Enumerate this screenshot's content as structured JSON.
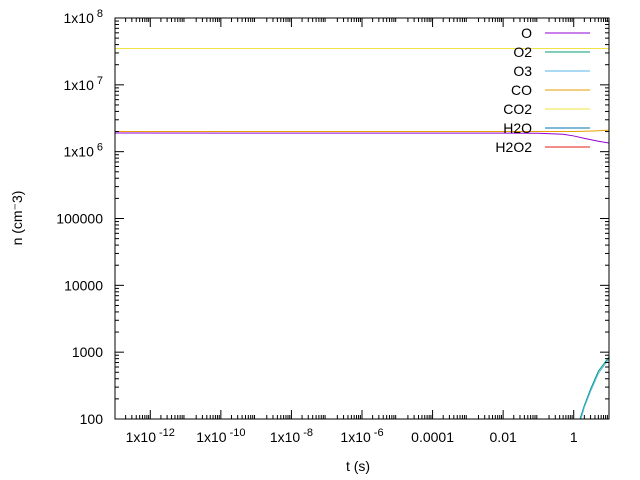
{
  "chart_data": {
    "type": "line",
    "xlabel": "t (s)",
    "ylabel": "n (cm⁻3)",
    "x_scale": "log",
    "y_scale": "log",
    "xlim": [
      1e-13,
      10
    ],
    "ylim": [
      100,
      100000000
    ],
    "grid": false,
    "legend_position": "top-right",
    "x_ticks": [
      {
        "value": 1e-12,
        "mant": "1x10",
        "exp": "-12"
      },
      {
        "value": 1e-10,
        "mant": "1x10",
        "exp": "-10"
      },
      {
        "value": 1e-08,
        "mant": "1x10",
        "exp": "-8"
      },
      {
        "value": 1e-06,
        "mant": "1x10",
        "exp": "-6"
      },
      {
        "value": 0.0001,
        "mant": "0.0001",
        "exp": ""
      },
      {
        "value": 0.01,
        "mant": "0.01",
        "exp": ""
      },
      {
        "value": 1,
        "mant": "1",
        "exp": ""
      }
    ],
    "y_ticks": [
      {
        "value": 100000000,
        "mant": "1x10",
        "exp": "8"
      },
      {
        "value": 10000000,
        "mant": "1x10",
        "exp": "7"
      },
      {
        "value": 1000000,
        "mant": "1x10",
        "exp": "6"
      },
      {
        "value": 100000,
        "mant": "100000",
        "exp": ""
      },
      {
        "value": 10000,
        "mant": "10000",
        "exp": ""
      },
      {
        "value": 1000,
        "mant": "1000",
        "exp": ""
      },
      {
        "value": 100,
        "mant": "100",
        "exp": ""
      }
    ],
    "series": [
      {
        "name": "O",
        "color": "#9400d3",
        "x": [
          1e-13,
          0.1,
          0.5,
          1,
          2,
          5,
          10
        ],
        "y": [
          1900000,
          1890000,
          1820000,
          1720000,
          1580000,
          1430000,
          1350000
        ]
      },
      {
        "name": "O2",
        "color": "#009e73",
        "x": [
          1.5,
          2,
          3,
          5,
          10
        ],
        "y": [
          100,
          160,
          280,
          520,
          850
        ]
      },
      {
        "name": "O3",
        "color": "#56b4e9",
        "x": [
          1.6,
          2,
          3,
          5,
          10
        ],
        "y": [
          100,
          150,
          260,
          480,
          800
        ]
      },
      {
        "name": "CO",
        "color": "#e69f00",
        "x": [
          1e-13,
          1,
          2,
          5,
          10
        ],
        "y": [
          2000000,
          2000000,
          2020000,
          2060000,
          2100000
        ]
      },
      {
        "name": "CO2",
        "color": "#f0e442",
        "x": [
          1e-13,
          10
        ],
        "y": [
          35000000,
          35000000
        ]
      },
      {
        "name": "H2O",
        "color": "#0072b2",
        "x": [],
        "y": []
      },
      {
        "name": "H2O2",
        "color": "#e51e10",
        "x": [],
        "y": []
      }
    ]
  }
}
